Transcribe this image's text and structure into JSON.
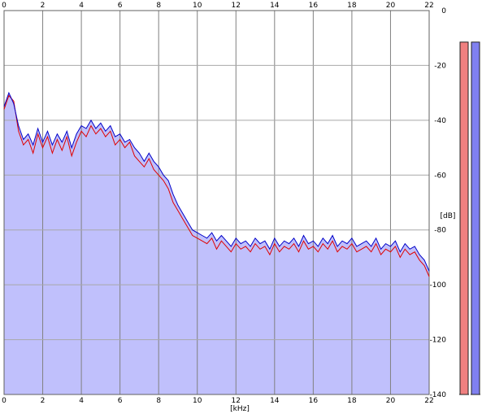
{
  "chart_data": {
    "type": "line",
    "x_ticks": [
      "0",
      "2",
      "4",
      "6",
      "8",
      "10",
      "12",
      "14",
      "16",
      "18",
      "20",
      "22"
    ],
    "y_ticks": [
      "0",
      "-20",
      "-40",
      "-60",
      "-80",
      "-100",
      "-120",
      "-140"
    ],
    "xlabel": "[kHz]",
    "ylabel": "[dB]",
    "xlim": [
      0,
      22
    ],
    "ylim": [
      -140,
      0
    ],
    "grid": true,
    "series": [
      {
        "color": "#e00000",
        "x": [
          0,
          0.25,
          0.5,
          0.75,
          1,
          1.25,
          1.5,
          1.75,
          2,
          2.25,
          2.5,
          2.75,
          3,
          3.25,
          3.5,
          3.75,
          4,
          4.25,
          4.5,
          4.75,
          5,
          5.25,
          5.5,
          5.75,
          6,
          6.25,
          6.5,
          6.75,
          7,
          7.25,
          7.5,
          7.75,
          8,
          8.25,
          8.5,
          8.75,
          9,
          9.25,
          9.5,
          9.75,
          10,
          10.25,
          10.5,
          10.75,
          11,
          11.25,
          11.5,
          11.75,
          12,
          12.25,
          12.5,
          12.75,
          13,
          13.25,
          13.5,
          13.75,
          14,
          14.25,
          14.5,
          14.75,
          15,
          15.25,
          15.5,
          15.75,
          16,
          16.25,
          16.5,
          16.75,
          17,
          17.25,
          17.5,
          17.75,
          18,
          18.25,
          18.5,
          18.75,
          19,
          19.25,
          19.5,
          19.75,
          20,
          20.25,
          20.5,
          20.75,
          21,
          21.25,
          21.5,
          21.75,
          22
        ],
        "values": [
          -36,
          -31,
          -33,
          -44,
          -49,
          -47,
          -52,
          -45,
          -50,
          -46,
          -52,
          -47,
          -51,
          -46,
          -53,
          -48,
          -44,
          -46,
          -42,
          -45,
          -43,
          -46,
          -44,
          -49,
          -47,
          -50,
          -48,
          -53,
          -55,
          -57,
          -54,
          -58,
          -60,
          -62,
          -65,
          -70,
          -73,
          -76,
          -79,
          -82,
          -83,
          -84,
          -85,
          -83,
          -87,
          -84,
          -86,
          -88,
          -85,
          -87,
          -86,
          -88,
          -85,
          -87,
          -86,
          -89,
          -85,
          -88,
          -86,
          -87,
          -85,
          -88,
          -84,
          -87,
          -86,
          -88,
          -85,
          -87,
          -84,
          -88,
          -86,
          -87,
          -85,
          -88,
          -87,
          -86,
          -88,
          -85,
          -89,
          -87,
          -88,
          -86,
          -90,
          -87,
          -89,
          -88,
          -91,
          -93,
          -97
        ]
      },
      {
        "color": "#0000c8",
        "x": [
          0,
          0.25,
          0.5,
          0.75,
          1,
          1.25,
          1.5,
          1.75,
          2,
          2.25,
          2.5,
          2.75,
          3,
          3.25,
          3.5,
          3.75,
          4,
          4.25,
          4.5,
          4.75,
          5,
          5.25,
          5.5,
          5.75,
          6,
          6.25,
          6.5,
          6.75,
          7,
          7.25,
          7.5,
          7.75,
          8,
          8.25,
          8.5,
          8.75,
          9,
          9.25,
          9.5,
          9.75,
          10,
          10.25,
          10.5,
          10.75,
          11,
          11.25,
          11.5,
          11.75,
          12,
          12.25,
          12.5,
          12.75,
          13,
          13.25,
          13.5,
          13.75,
          14,
          14.25,
          14.5,
          14.75,
          15,
          15.25,
          15.5,
          15.75,
          16,
          16.25,
          16.5,
          16.75,
          17,
          17.25,
          17.5,
          17.75,
          18,
          18.25,
          18.5,
          18.75,
          19,
          19.25,
          19.5,
          19.75,
          20,
          20.25,
          20.5,
          20.75,
          21,
          21.25,
          21.5,
          21.75,
          22
        ],
        "values": [
          -35,
          -30,
          -34,
          -42,
          -47,
          -45,
          -49,
          -43,
          -48,
          -44,
          -49,
          -45,
          -48,
          -44,
          -50,
          -45,
          -42,
          -43,
          -40,
          -43,
          -41,
          -44,
          -42,
          -46,
          -45,
          -48,
          -47,
          -50,
          -52,
          -55,
          -52,
          -55,
          -57,
          -60,
          -62,
          -67,
          -71,
          -74,
          -77,
          -80,
          -81,
          -82,
          -83,
          -81,
          -84,
          -82,
          -84,
          -86,
          -83,
          -85,
          -84,
          -86,
          -83,
          -85,
          -84,
          -87,
          -83,
          -86,
          -84,
          -85,
          -83,
          -86,
          -82,
          -85,
          -84,
          -86,
          -83,
          -85,
          -82,
          -86,
          -84,
          -85,
          -83,
          -86,
          -85,
          -84,
          -86,
          -83,
          -87,
          -85,
          -86,
          -84,
          -88,
          -85,
          -87,
          -86,
          -89,
          -91,
          -95
        ]
      }
    ],
    "meters": [
      {
        "color": "#f08080",
        "value": -11.5
      },
      {
        "color": "#8080f0",
        "value": -11.5
      }
    ],
    "fill_color": "#c0c0fc"
  }
}
